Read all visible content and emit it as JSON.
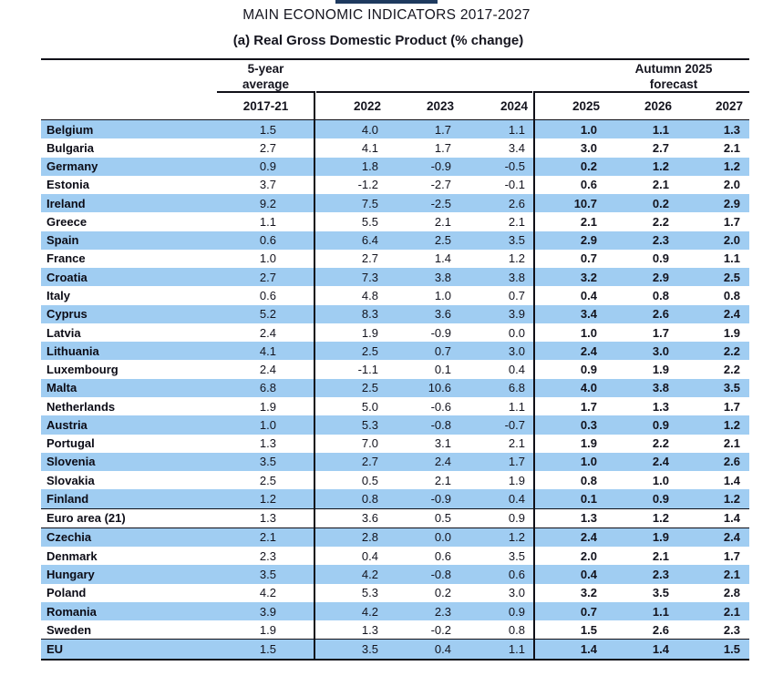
{
  "page": {
    "title": "MAIN ECONOMIC INDICATORS 2017-2027",
    "subtitle": "(a) Real Gross Domestic Product (% change)"
  },
  "colors": {
    "row_highlight": "#a0cdf2",
    "top_accent_bar": "#1e3a5f",
    "rule": "#101018"
  },
  "table": {
    "group_headers": {
      "average_line1": "5-year",
      "average_line2": "average",
      "forecast_line1": "Autumn 2025",
      "forecast_line2": "forecast"
    },
    "year_headers": [
      "2017-21",
      "2022",
      "2023",
      "2024",
      "2025",
      "2026",
      "2027"
    ],
    "rows": [
      {
        "name": "Belgium",
        "values": [
          "1.5",
          "4.0",
          "1.7",
          "1.1",
          "1.0",
          "1.1",
          "1.3"
        ]
      },
      {
        "name": "Bulgaria",
        "values": [
          "2.7",
          "4.1",
          "1.7",
          "3.4",
          "3.0",
          "2.7",
          "2.1"
        ]
      },
      {
        "name": "Germany",
        "values": [
          "0.9",
          "1.8",
          "-0.9",
          "-0.5",
          "0.2",
          "1.2",
          "1.2"
        ]
      },
      {
        "name": "Estonia",
        "values": [
          "3.7",
          "-1.2",
          "-2.7",
          "-0.1",
          "0.6",
          "2.1",
          "2.0"
        ]
      },
      {
        "name": "Ireland",
        "values": [
          "9.2",
          "7.5",
          "-2.5",
          "2.6",
          "10.7",
          "0.2",
          "2.9"
        ]
      },
      {
        "name": "Greece",
        "values": [
          "1.1",
          "5.5",
          "2.1",
          "2.1",
          "2.1",
          "2.2",
          "1.7"
        ]
      },
      {
        "name": "Spain",
        "values": [
          "0.6",
          "6.4",
          "2.5",
          "3.5",
          "2.9",
          "2.3",
          "2.0"
        ]
      },
      {
        "name": "France",
        "values": [
          "1.0",
          "2.7",
          "1.4",
          "1.2",
          "0.7",
          "0.9",
          "1.1"
        ]
      },
      {
        "name": "Croatia",
        "values": [
          "2.7",
          "7.3",
          "3.8",
          "3.8",
          "3.2",
          "2.9",
          "2.5"
        ]
      },
      {
        "name": "Italy",
        "values": [
          "0.6",
          "4.8",
          "1.0",
          "0.7",
          "0.4",
          "0.8",
          "0.8"
        ]
      },
      {
        "name": "Cyprus",
        "values": [
          "5.2",
          "8.3",
          "3.6",
          "3.9",
          "3.4",
          "2.6",
          "2.4"
        ]
      },
      {
        "name": "Latvia",
        "values": [
          "2.4",
          "1.9",
          "-0.9",
          "0.0",
          "1.0",
          "1.7",
          "1.9"
        ]
      },
      {
        "name": "Lithuania",
        "values": [
          "4.1",
          "2.5",
          "0.7",
          "3.0",
          "2.4",
          "3.0",
          "2.2"
        ]
      },
      {
        "name": "Luxembourg",
        "values": [
          "2.4",
          "-1.1",
          "0.1",
          "0.4",
          "0.9",
          "1.9",
          "2.2"
        ]
      },
      {
        "name": "Malta",
        "values": [
          "6.8",
          "2.5",
          "10.6",
          "6.8",
          "4.0",
          "3.8",
          "3.5"
        ]
      },
      {
        "name": "Netherlands",
        "values": [
          "1.9",
          "5.0",
          "-0.6",
          "1.1",
          "1.7",
          "1.3",
          "1.7"
        ]
      },
      {
        "name": "Austria",
        "values": [
          "1.0",
          "5.3",
          "-0.8",
          "-0.7",
          "0.3",
          "0.9",
          "1.2"
        ]
      },
      {
        "name": "Portugal",
        "values": [
          "1.3",
          "7.0",
          "3.1",
          "2.1",
          "1.9",
          "2.2",
          "2.1"
        ]
      },
      {
        "name": "Slovenia",
        "values": [
          "3.5",
          "2.7",
          "2.4",
          "1.7",
          "1.0",
          "2.4",
          "2.6"
        ]
      },
      {
        "name": "Slovakia",
        "values": [
          "2.5",
          "0.5",
          "2.1",
          "1.9",
          "0.8",
          "1.0",
          "1.4"
        ]
      },
      {
        "name": "Finland",
        "values": [
          "1.2",
          "0.8",
          "-0.9",
          "0.4",
          "0.1",
          "0.9",
          "1.2"
        ]
      },
      {
        "name": "Euro area (21)",
        "values": [
          "1.3",
          "3.6",
          "0.5",
          "0.9",
          "1.3",
          "1.2",
          "1.4"
        ]
      },
      {
        "name": "Czechia",
        "values": [
          "2.1",
          "2.8",
          "0.0",
          "1.2",
          "2.4",
          "1.9",
          "2.4"
        ]
      },
      {
        "name": "Denmark",
        "values": [
          "2.3",
          "0.4",
          "0.6",
          "3.5",
          "2.0",
          "2.1",
          "1.7"
        ]
      },
      {
        "name": "Hungary",
        "values": [
          "3.5",
          "4.2",
          "-0.8",
          "0.6",
          "0.4",
          "2.3",
          "2.1"
        ]
      },
      {
        "name": "Poland",
        "values": [
          "4.2",
          "5.3",
          "0.2",
          "3.0",
          "3.2",
          "3.5",
          "2.8"
        ]
      },
      {
        "name": "Romania",
        "values": [
          "3.9",
          "4.2",
          "2.3",
          "0.9",
          "0.7",
          "1.1",
          "2.1"
        ]
      },
      {
        "name": "Sweden",
        "values": [
          "1.9",
          "1.3",
          "-0.2",
          "0.8",
          "1.5",
          "2.6",
          "2.3"
        ]
      },
      {
        "name": "EU",
        "values": [
          "1.5",
          "3.5",
          "0.4",
          "1.1",
          "1.4",
          "1.4",
          "1.5"
        ]
      }
    ]
  }
}
